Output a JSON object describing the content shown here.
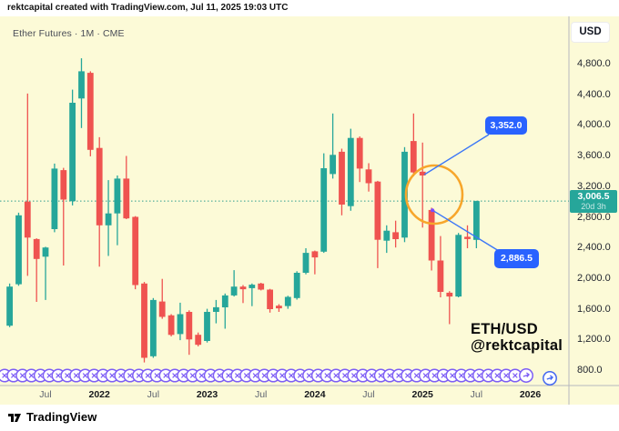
{
  "header": {
    "attribution": "rektcapital created with TradingView.com, Jul 11, 2025 19:03 UTC"
  },
  "toolbar": {
    "currency_label": "USD"
  },
  "chart": {
    "symbol_title": "Ether Futures · 1M · CME",
    "watermark": {
      "line1": "ETH/USD",
      "line2": "@rektcapital"
    },
    "colors": {
      "background": "#FCFAD7",
      "up": "#26a69a",
      "down": "#ef5350",
      "accent_blue": "#2962FF",
      "callout_line_blue": "#3c77f7",
      "accent_orange": "#F7A62B",
      "accent_purple": "#7d5ef5",
      "arrow_marker_blue": "#4468f0",
      "current_price_badge": "#26a69a",
      "separator_gray": "#b6b8bf"
    },
    "price_axis": {
      "tick_values": [
        4800,
        4400,
        4000,
        3600,
        3200,
        2800,
        2400,
        2000,
        1600,
        1200,
        800
      ],
      "tick_labels": [
        "4,800.0",
        "4,400.0",
        "4,000.0",
        "3,600.0",
        "3,200.0",
        "2,800.0",
        "2,400.0",
        "2,000.0",
        "1,600.0",
        "1,200.0",
        "800.0"
      ],
      "current_price": 3006.5,
      "current_price_label": "3,006.5",
      "countdown": "20d 3h"
    },
    "time_axis": {
      "ticks": [
        {
          "label": "Jul",
          "index": 4,
          "is_year": false
        },
        {
          "label": "2022",
          "index": 10,
          "is_year": true
        },
        {
          "label": "Jul",
          "index": 16,
          "is_year": false
        },
        {
          "label": "2023",
          "index": 22,
          "is_year": true
        },
        {
          "label": "Jul",
          "index": 28,
          "is_year": false
        },
        {
          "label": "2024",
          "index": 34,
          "is_year": true
        },
        {
          "label": "Jul",
          "index": 40,
          "is_year": false
        },
        {
          "label": "2025",
          "index": 46,
          "is_year": true
        },
        {
          "label": "Jul",
          "index": 52,
          "is_year": false
        },
        {
          "label": "2026",
          "index": 58,
          "is_year": true
        }
      ]
    },
    "annotations": {
      "callouts": [
        {
          "label": "3,352.0",
          "price": 3352,
          "month": "Jan 2025",
          "month_index": 46
        },
        {
          "label": "2,886.5",
          "price": 2886.5,
          "month": "Feb 2025",
          "month_index": 47
        }
      ],
      "highlight_circle": {
        "month_index": 47.3,
        "price": 3091
      },
      "marker_row": {
        "icon": "x-in-circle",
        "count": 58
      },
      "arrow_marker_count": 2
    }
  },
  "chart_data": {
    "type": "candlestick",
    "symbol": "Ether Futures (CME)",
    "timeframe": "1M",
    "quote_currency": "USD",
    "ylim": [
      800,
      4800
    ],
    "grid": false,
    "last_price": 3006.5,
    "x_months": [
      "Mar 2021",
      "Apr 2021",
      "May 2021",
      "Jun 2021",
      "Jul 2021",
      "Aug 2021",
      "Sep 2021",
      "Oct 2021",
      "Nov 2021",
      "Dec 2021",
      "Jan 2022",
      "Feb 2022",
      "Mar 2022",
      "Apr 2022",
      "May 2022",
      "Jun 2022",
      "Jul 2022",
      "Aug 2022",
      "Sep 2022",
      "Oct 2022",
      "Nov 2022",
      "Dec 2022",
      "Jan 2023",
      "Feb 2023",
      "Mar 2023",
      "Apr 2023",
      "May 2023",
      "Jun 2023",
      "Jul 2023",
      "Aug 2023",
      "Sep 2023",
      "Oct 2023",
      "Nov 2023",
      "Dec 2023",
      "Jan 2024",
      "Feb 2024",
      "Mar 2024",
      "Apr 2024",
      "May 2024",
      "Jun 2024",
      "Jul 2024",
      "Aug 2024",
      "Sep 2024",
      "Oct 2024",
      "Nov 2024",
      "Dec 2024",
      "Jan 2025",
      "Feb 2025",
      "Mar 2025",
      "Apr 2025",
      "May 2025",
      "Jun 2025",
      "Jul 2025"
    ],
    "candles_ohlc": [
      [
        1380,
        1930,
        1360,
        1890
      ],
      [
        1920,
        2855,
        1900,
        2820
      ],
      [
        3000,
        4410,
        2030,
        2530
      ],
      [
        2510,
        2520,
        1690,
        2250
      ],
      [
        2280,
        2410,
        1715,
        2400
      ],
      [
        2640,
        3495,
        2600,
        3430
      ],
      [
        3410,
        3440,
        2165,
        3025
      ],
      [
        3005,
        4460,
        2950,
        4290
      ],
      [
        4345,
        4870,
        3960,
        4700
      ],
      [
        4680,
        4700,
        3590,
        3675
      ],
      [
        3700,
        3840,
        2150,
        2690
      ],
      [
        2690,
        3280,
        2290,
        2845
      ],
      [
        2845,
        3340,
        2430,
        3300
      ],
      [
        3300,
        3595,
        2770,
        2780
      ],
      [
        2800,
        2810,
        1855,
        1910
      ],
      [
        1930,
        1950,
        900,
        960
      ],
      [
        980,
        1740,
        960,
        1715
      ],
      [
        1695,
        1990,
        1470,
        1495
      ],
      [
        1515,
        1530,
        1240,
        1260
      ],
      [
        1270,
        1680,
        1190,
        1530
      ],
      [
        1560,
        1580,
        1000,
        1200
      ],
      [
        1260,
        1290,
        1110,
        1130
      ],
      [
        1180,
        1600,
        1160,
        1560
      ],
      [
        1560,
        1715,
        1410,
        1620
      ],
      [
        1620,
        1800,
        1340,
        1775
      ],
      [
        1775,
        2105,
        1760,
        1890
      ],
      [
        1890,
        1910,
        1675,
        1855
      ],
      [
        1870,
        1930,
        1634,
        1915
      ],
      [
        1930,
        1940,
        1840,
        1850
      ],
      [
        1850,
        1860,
        1550,
        1595
      ],
      [
        1640,
        1660,
        1560,
        1605
      ],
      [
        1635,
        1770,
        1600,
        1755
      ],
      [
        1740,
        2090,
        1720,
        2070
      ],
      [
        2070,
        2390,
        2050,
        2330
      ],
      [
        2350,
        2360,
        2050,
        2270
      ],
      [
        2345,
        3630,
        2330,
        3435
      ],
      [
        3360,
        4150,
        3300,
        3610
      ],
      [
        3650,
        3690,
        2820,
        2960
      ],
      [
        2940,
        3950,
        2880,
        3830
      ],
      [
        3830,
        3850,
        3255,
        3430
      ],
      [
        3420,
        3500,
        3130,
        3240
      ],
      [
        3260,
        3270,
        2130,
        2500
      ],
      [
        2490,
        2690,
        2330,
        2620
      ],
      [
        2600,
        2750,
        2400,
        2510
      ],
      [
        2530,
        3710,
        2470,
        3650
      ],
      [
        3790,
        4150,
        3330,
        3380
      ],
      [
        3390,
        3770,
        2660,
        3340
      ],
      [
        2890,
        2920,
        2100,
        2230
      ],
      [
        2230,
        2550,
        1750,
        1820
      ],
      [
        1810,
        1830,
        1400,
        1760
      ],
      [
        1760,
        2590,
        1750,
        2565
      ],
      [
        2540,
        2690,
        2390,
        2510
      ],
      [
        2500,
        3010,
        2390,
        3006.5
      ]
    ]
  },
  "footer": {
    "brand": "TradingView"
  }
}
